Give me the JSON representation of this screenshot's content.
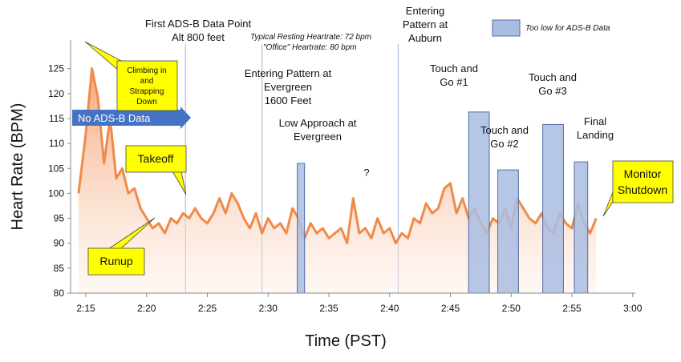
{
  "chart_data": {
    "type": "line",
    "xlabel": "Time (PST)",
    "ylabel": "Heart Rate (BPM)",
    "ylim": [
      80,
      125
    ],
    "yticks": [
      80,
      85,
      90,
      95,
      100,
      105,
      110,
      115,
      120,
      125
    ],
    "xlim_minutes": [
      0,
      45
    ],
    "xticks": [
      "2:15",
      "2:20",
      "2:25",
      "2:30",
      "2:35",
      "2:40",
      "2:45",
      "2:50",
      "2:55",
      "3:00"
    ],
    "grid": false,
    "legend": "top-right",
    "colors": {
      "line": "#f08a4b",
      "fill": "#f5a77a",
      "box_fill": "#a9bde2",
      "box_stroke": "#4f6aa6",
      "arrow": "#4472c4",
      "callout": "#ffff00",
      "vline": "#9db3d6"
    },
    "series": [
      {
        "name": "",
        "x": [
          -0.6,
          0,
          0.5,
          1.0,
          1.5,
          2.0,
          2.5,
          3.0,
          3.5,
          4.0,
          4.5,
          5.0,
          5.5,
          6.0,
          6.5,
          7.0,
          7.5,
          8.0,
          8.5,
          9.0,
          9.5,
          10.0,
          10.5,
          11.0,
          11.5,
          12.0,
          12.5,
          13.0,
          13.5,
          14.0,
          14.5,
          15.0,
          15.5,
          16.0,
          16.5,
          17.0,
          17.5,
          18.0,
          18.5,
          19.0,
          19.5,
          20.0,
          20.5,
          21.0,
          21.5,
          22.0,
          22.5,
          23.0,
          23.5,
          24.0,
          24.5,
          25.0,
          25.5,
          26.0,
          26.5,
          27.0,
          27.5,
          28.0,
          28.5,
          29.0,
          29.5,
          30.0,
          30.5,
          31.0,
          31.5,
          32.0,
          32.5,
          33.0,
          33.5,
          34.0,
          34.5,
          35.0,
          35.5,
          36.0,
          36.5,
          37.0,
          37.5,
          38.0,
          38.5,
          39.0,
          39.5,
          40.0,
          40.5,
          41.0,
          41.5,
          42.0
        ],
        "y": [
          100,
          112,
          125,
          119,
          106,
          115,
          103,
          105,
          100,
          101,
          97,
          95,
          93,
          94,
          92,
          95,
          94,
          96,
          95,
          97,
          95,
          94,
          96,
          99,
          96,
          100,
          98,
          95,
          93,
          96,
          92,
          95,
          93,
          94,
          92,
          97,
          95,
          91,
          94,
          92,
          93,
          91,
          92,
          93,
          90,
          99,
          92,
          93,
          91,
          95,
          92,
          93,
          90,
          92,
          91,
          95,
          94,
          98,
          96,
          97,
          101,
          102,
          96,
          99,
          95,
          97,
          94,
          92,
          95,
          94,
          97,
          93,
          99,
          97,
          95,
          94,
          96,
          93,
          92,
          96,
          94,
          93,
          98,
          94,
          92,
          95
        ]
      }
    ],
    "bars": [
      {
        "x_start": 17.4,
        "x_end": 18.0,
        "top": 106
      },
      {
        "x_start": 31.5,
        "x_end": 33.2,
        "top": 116.3
      },
      {
        "x_start": 33.9,
        "x_end": 35.6,
        "top": 104.7
      },
      {
        "x_start": 37.6,
        "x_end": 39.3,
        "top": 113.8
      },
      {
        "x_start": 40.2,
        "x_end": 41.3,
        "top": 106.3
      }
    ],
    "vlines": [
      8.2,
      14.5,
      25.7
    ],
    "legend_label": "Too low for ADS-B Data",
    "notes": [
      "Typical Resting Heartrate:  72 bpm",
      "\"Office\" Heartrate:  80 bpm"
    ],
    "annotations": {
      "first_adsb": [
        "First ADS-B Data Point",
        "Alt 800 feet"
      ],
      "evergreen_pattern": [
        "Entering Pattern at",
        "Evergreen",
        "1600 Feet"
      ],
      "low_approach": [
        "Low Approach at",
        "Evergreen"
      ],
      "question": "?",
      "auburn": [
        "Entering",
        "Pattern at",
        "Auburn"
      ],
      "tg1": [
        "Touch and",
        "Go #1"
      ],
      "tg2": [
        "Touch and",
        "Go #2"
      ],
      "tg3": [
        "Touch and",
        "Go #3"
      ],
      "final": [
        "Final",
        "Landing"
      ]
    },
    "arrow_label": "No ADS-B Data",
    "callouts": {
      "climbing": [
        "Climbing in",
        "and",
        "Strapping",
        "Down"
      ],
      "takeoff": "Takeoff",
      "runup": "Runup",
      "monitor": [
        "Monitor",
        "Shutdown"
      ]
    }
  }
}
